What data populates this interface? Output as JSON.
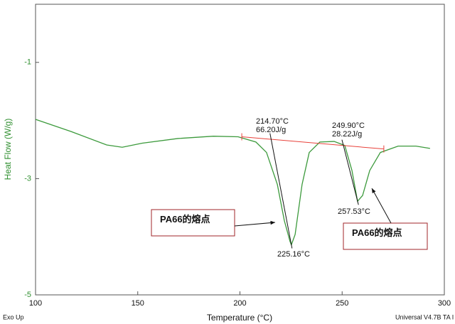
{
  "chart_data": {
    "type": "line",
    "xlabel": "Temperature (°C)",
    "ylabel": "Heat Flow (W/g)",
    "xlim": [
      100,
      300
    ],
    "xticks": [
      100,
      150,
      200,
      250,
      300
    ],
    "ylim": [
      -5,
      0
    ],
    "yticks": [
      -5,
      -3,
      -1
    ],
    "series": [
      {
        "color": "#3c9a3c",
        "x": [
          100,
          117.4,
          134.8,
          142.4,
          152.2,
          169.6,
          187,
          199.1,
          207.8,
          213,
          218.3,
          221.7,
          224.5,
          225.16,
          227,
          230.4,
          233.9,
          239.1,
          246.1,
          251.3,
          254.8,
          257.53,
          260,
          263.5,
          268.7,
          277.4,
          286.1,
          293
        ],
        "values": [
          -1.98,
          -2.19,
          -2.42,
          -2.46,
          -2.39,
          -2.31,
          -2.27,
          -2.28,
          -2.37,
          -2.55,
          -3.1,
          -3.72,
          -4.08,
          -4.14,
          -3.96,
          -3.1,
          -2.55,
          -2.37,
          -2.36,
          -2.43,
          -2.86,
          -3.39,
          -3.29,
          -2.86,
          -2.55,
          -2.44,
          -2.44,
          -2.48
        ]
      }
    ],
    "baseline": {
      "color": "#e8413a",
      "x": [
        200.9,
        270.4
      ],
      "values": [
        -2.28,
        -2.49
      ]
    },
    "tangents": [
      {
        "x": [
          214.7,
          225.5
        ],
        "values": [
          -2.22,
          -4.2
        ]
      },
      {
        "x": [
          249.9,
          258
        ],
        "values": [
          -2.33,
          -3.45
        ]
      }
    ],
    "annotations": [
      "214.70°C",
      "66.20J/g",
      "249.90°C",
      "28.22J/g",
      "225.16°C",
      "257.53°C"
    ],
    "callouts": [
      "PA66的熔点",
      "PA66的熔点"
    ],
    "footer_left": "Exo Up",
    "footer_right": "Universal V4.7B TA I"
  }
}
